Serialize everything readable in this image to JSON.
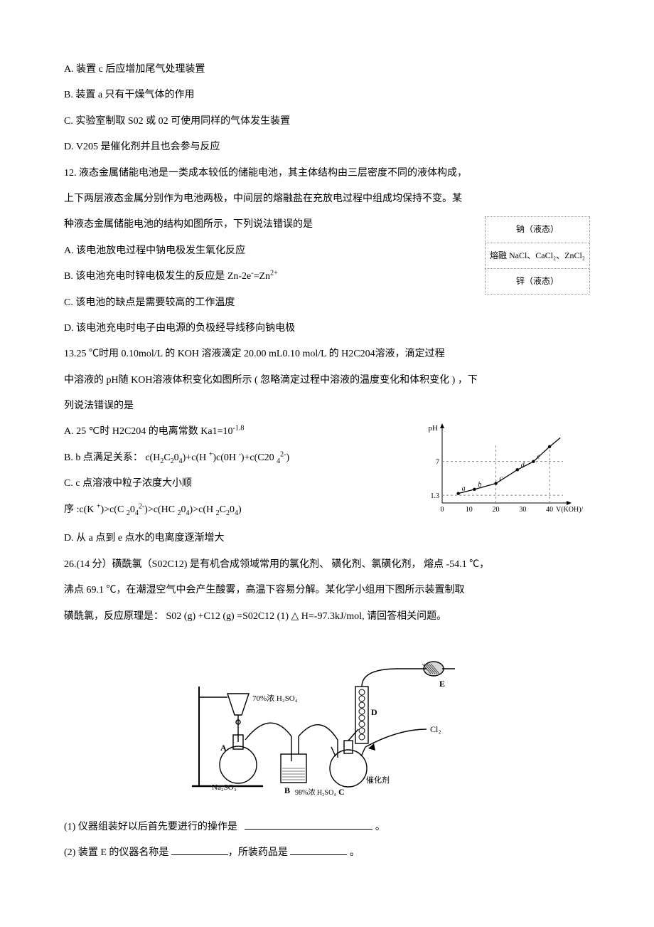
{
  "q11": {
    "optA": "A.  装置  c 后应增加尾气处理装置",
    "optB": "B. 装置  a 只有干燥气体的作用",
    "optC": "C. 实验室制取   S02 或 02 可使用同样的气体发生装置",
    "optD": "D. V205   是催化剂并且也会参与反应"
  },
  "q12": {
    "stem1": "12. 液态金属储能电池是一类成本较低的储能电池，其主体结构由三层密度不同的液体构成，",
    "stem2": "上下两层液态金属分别作为电池两极，中间层的熔融盐在充放电过程中组成均保持不变。某",
    "stem3": "种液态金属储能电池的结构如图所示，下列说法错误的是",
    "optA": "A. 该电池放电过程中钠电极发生氧化反应",
    "optB_pre": "B. 该电池充电时锌电极发生的反应是    Zn-2e",
    "optB_mid": "=Zn",
    "optC": "C. 该电池的缺点是需要较高的工作温度",
    "optD": "D. 该电池充电时电子由电源的负极经导线移向钠电极",
    "battery": {
      "row1": "钠（液态）",
      "row2": "熔融 NaCl、CaCl₂、ZnCl₂",
      "row3": "锌（液态）"
    }
  },
  "q13": {
    "line1_a": "13.25 ℃时用 0.10mol/L    的 KOH 溶液滴定  20.00 mL0.10 mol/L     的 H2C204溶液，滴定过程",
    "line2_a": "中溶液的  pH随 KOH溶液体积变化如图所示   ( 忽略滴定过程中溶液的温度变化和体积变化     ) ，下",
    "line3": "列说法错误的是",
    "optA_pre": "A. 25  ℃时 H2C204 的电离常数   Ka1=10",
    "optA_exp": "-1.8",
    "optB_pre": "B. b   点满足关系：   c(H",
    "optB_2": "C",
    "optB_3": "0",
    "optB_4": ")+c(H ",
    "optB_5": ")c(0H ",
    "optB_6": ")+c(C20 ",
    "optB_7": ")",
    "optC_line1": "C. c 点溶液中粒子浓度大小顺",
    "optC_line2_a": "序 :c(K ",
    "optC_line2_b": ")>c(C ",
    "optC_line2_c": "0",
    "optC_line2_d": ")>c(HC ",
    "optC_line2_e": "0",
    "optC_line2_f": ")>c(H ",
    "optC_line2_g": "C",
    "optC_line2_h": "0",
    "optC_line2_i": ")",
    "optD": "D. 从 a 点到  e 点水的电离度逐渐增大",
    "chart": {
      "ylabel": "pH",
      "xlabel": "V(KOH)/mL",
      "xticks": [
        "0",
        "10",
        "20",
        "30",
        "40"
      ],
      "ylines": [
        1.3,
        7
      ],
      "y_tick_labels": [
        "1.3",
        "7"
      ],
      "points_x": [
        6,
        12,
        20,
        28,
        34,
        40
      ],
      "points_y": [
        1.6,
        2.3,
        3.3,
        5.6,
        7.0,
        9.5
      ],
      "point_labels": [
        "a",
        "b",
        "c",
        "d",
        "e"
      ],
      "line_color": "#000000",
      "axis_color": "#000000",
      "dash_color": "#888888"
    }
  },
  "q26": {
    "line1": "26.(14  分）磺酰氯（S02C12) 是有机合成领域常用的氯化剂、  磺化剂、氯磺化剂， 熔点 -54.1 ℃，",
    "line2": "沸点 69.1 ℃，在潮湿空气中会产生酸雾，高温下容易分解。某化学小组用下图所示装置制取",
    "line3": "磺酰氯，反应原理是： S02 (g) +C12 (g) =S02C12 (1)   △   H=-97.3kJ/mol,   请回答相关问题。",
    "apparatus_labels": {
      "A_top": "70%浓 H₂SO₄",
      "A": "A",
      "NaSO": "Na₂SO₃",
      "B": "B",
      "B_label": "98%浓 H₂SO₄",
      "C": "C",
      "cat": "催化剂",
      "D": "D",
      "E": "E",
      "Cl2": "Cl₂"
    },
    "sub1_pre": "(1) 仪器组装好以后首先要进行的操作是",
    "sub1_end": "。",
    "sub2_pre": "(2) 装置  E 的仪器名称是  ",
    "sub2_mid": "，所装药品是  ",
    "sub2_end": "  。"
  }
}
